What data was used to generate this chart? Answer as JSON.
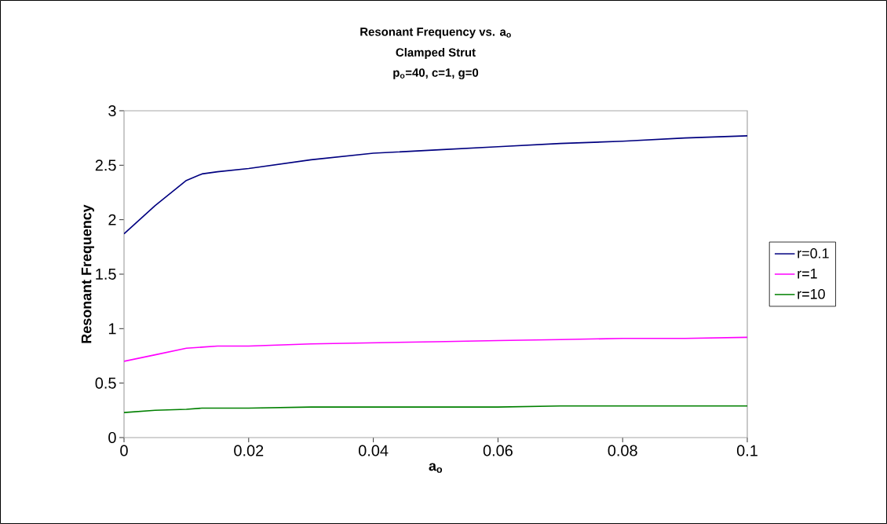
{
  "chart_data": {
    "type": "line",
    "title": "Resonant Frequency vs. a$_{o}$",
    "subtitle": "Clamped Strut",
    "annotations": [
      "p$_{o}$=40, c=1, g=0"
    ],
    "xlabel": "a$_{o}$",
    "ylabel": "Resonant Frequency",
    "x": [
      0,
      0.005,
      0.01,
      0.0125,
      0.015,
      0.02,
      0.03,
      0.04,
      0.05,
      0.06,
      0.07,
      0.08,
      0.09,
      0.1
    ],
    "series": [
      {
        "name": "r=0.1",
        "color": "#000080",
        "values": [
          1.87,
          2.13,
          2.36,
          2.42,
          2.44,
          2.47,
          2.55,
          2.61,
          2.64,
          2.67,
          2.7,
          2.72,
          2.75,
          2.77
        ]
      },
      {
        "name": "r=1",
        "color": "#ff00ff",
        "values": [
          0.7,
          0.76,
          0.82,
          0.83,
          0.84,
          0.84,
          0.86,
          0.87,
          0.88,
          0.89,
          0.9,
          0.91,
          0.91,
          0.92
        ]
      },
      {
        "name": "r=10",
        "color": "#008000",
        "values": [
          0.23,
          0.25,
          0.26,
          0.27,
          0.27,
          0.27,
          0.28,
          0.28,
          0.28,
          0.28,
          0.29,
          0.29,
          0.29,
          0.29
        ]
      }
    ],
    "xlim": [
      0,
      0.1
    ],
    "xticks": [
      0,
      0.02,
      0.04,
      0.06,
      0.08,
      0.1
    ],
    "ylim": [
      0,
      3
    ],
    "yticks": [
      0,
      0.5,
      1,
      1.5,
      2,
      2.5,
      3
    ],
    "grid": false,
    "legend": "right",
    "marker": "none",
    "line_style": "solid"
  }
}
